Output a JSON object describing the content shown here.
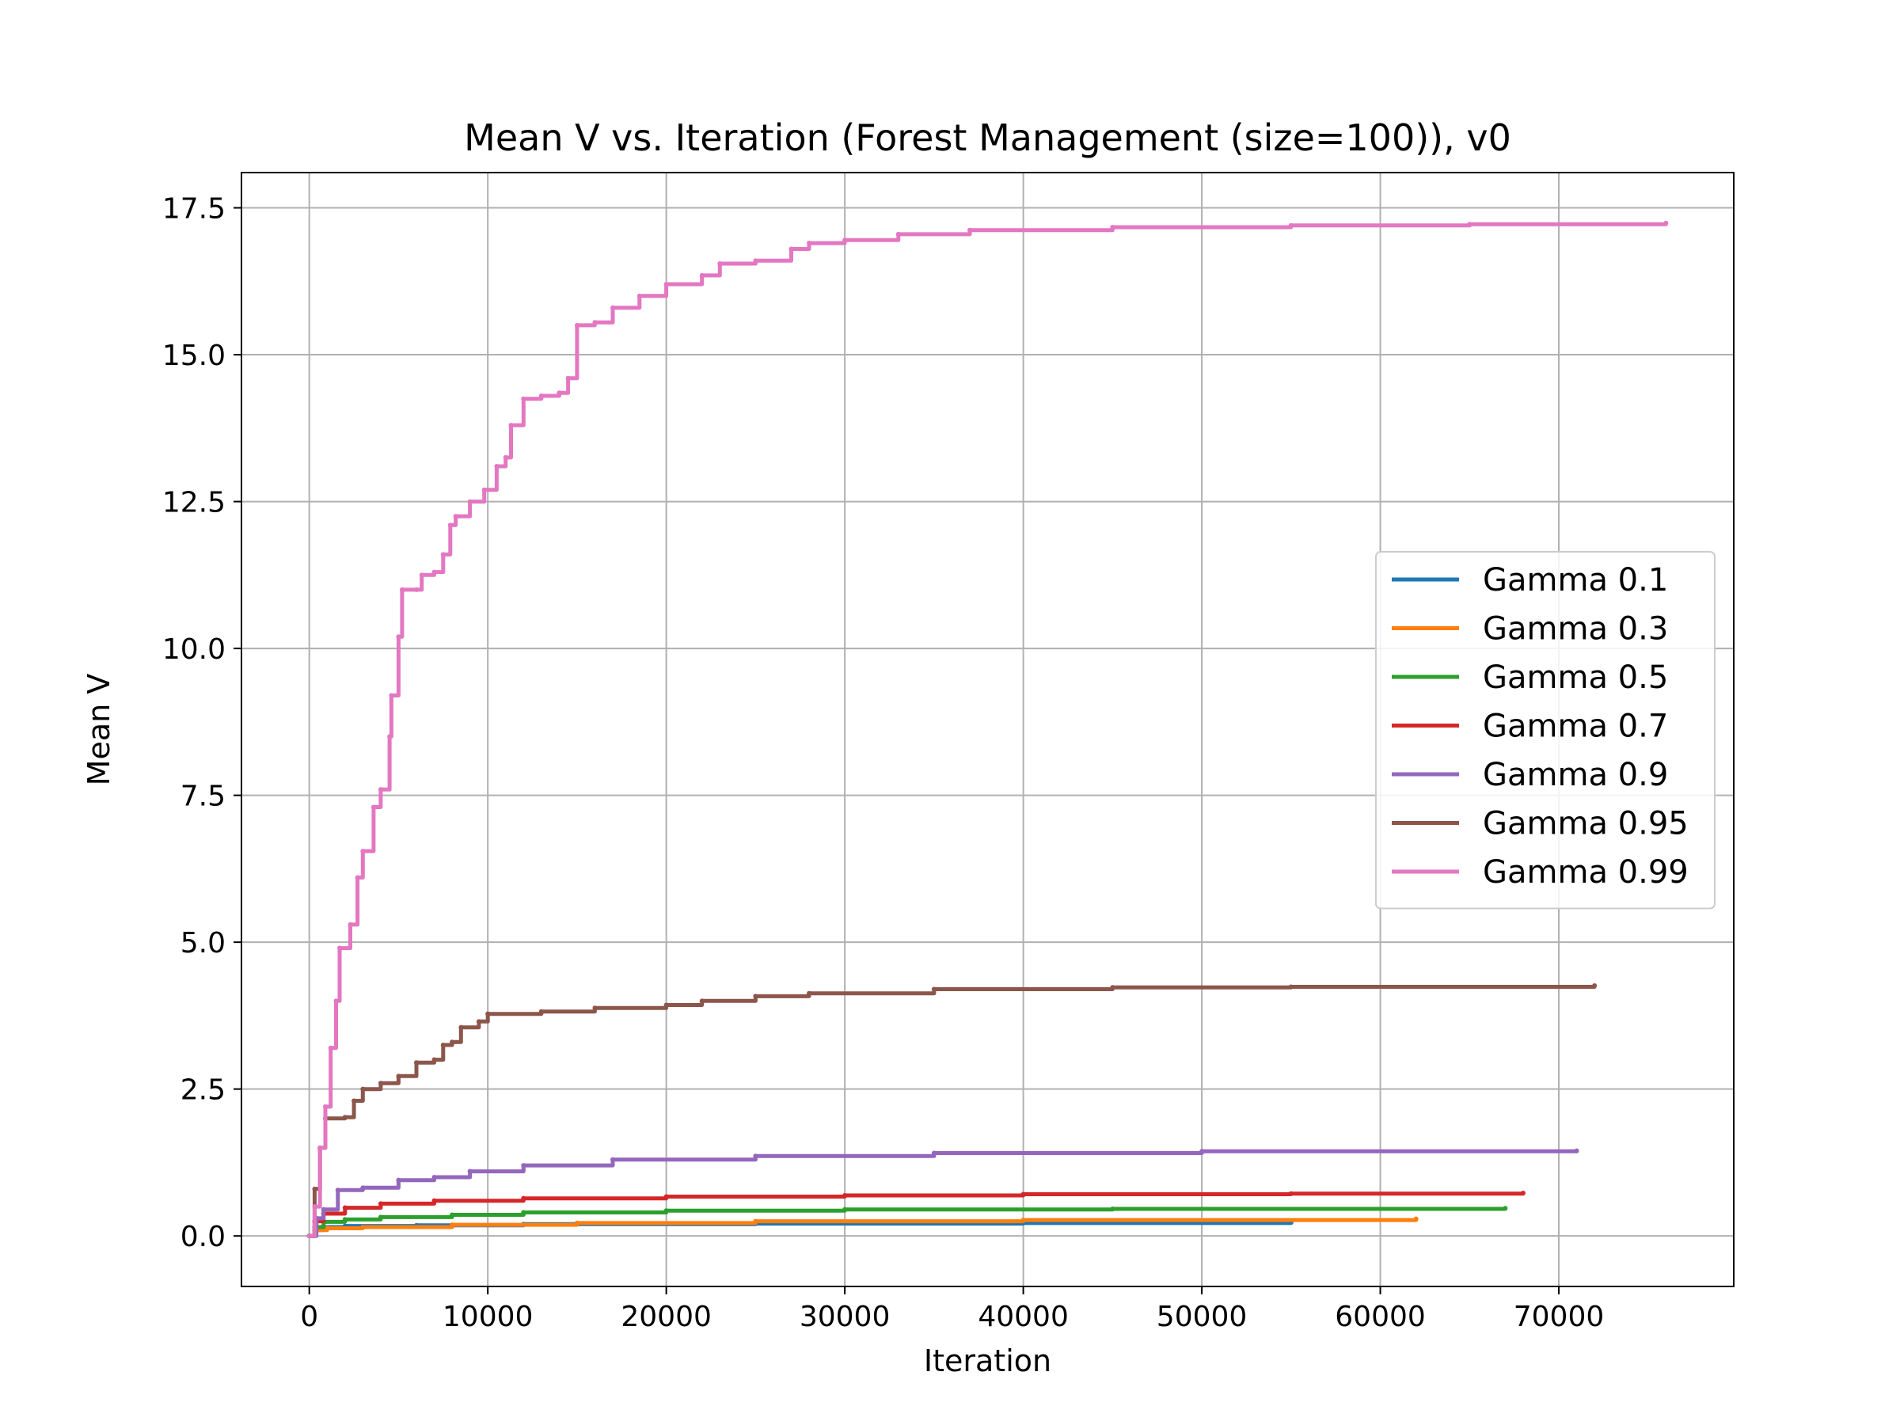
{
  "chart_data": {
    "type": "line",
    "title": "Mean V vs. Iteration (Forest Management (size=100)), v0",
    "xlabel": "Iteration",
    "ylabel": "Mean V",
    "xlim": [
      -3800,
      79800
    ],
    "ylim": [
      -0.86,
      18.1
    ],
    "x_ticks": [
      0,
      10000,
      20000,
      30000,
      40000,
      50000,
      60000,
      70000
    ],
    "y_ticks": [
      0.0,
      2.5,
      5.0,
      7.5,
      10.0,
      12.5,
      15.0,
      17.5
    ],
    "x_tick_labels": [
      "0",
      "10000",
      "20000",
      "30000",
      "40000",
      "50000",
      "60000",
      "70000"
    ],
    "y_tick_labels": [
      "0.0",
      "2.5",
      "5.0",
      "7.5",
      "10.0",
      "12.5",
      "15.0",
      "17.5"
    ],
    "grid": true,
    "legend_position": "center-right",
    "series": [
      {
        "name": "Gamma 0.1",
        "color": "#1f77b4",
        "points": [
          [
            0,
            0.0
          ],
          [
            300,
            0.1
          ],
          [
            800,
            0.15
          ],
          [
            2000,
            0.17
          ],
          [
            6000,
            0.18
          ],
          [
            12000,
            0.2
          ],
          [
            25000,
            0.21
          ],
          [
            40000,
            0.22
          ],
          [
            55000,
            0.23
          ]
        ]
      },
      {
        "name": "Gamma 0.3",
        "color": "#ff7f0e",
        "points": [
          [
            0,
            0.0
          ],
          [
            300,
            0.1
          ],
          [
            1000,
            0.13
          ],
          [
            3000,
            0.15
          ],
          [
            8000,
            0.19
          ],
          [
            15000,
            0.22
          ],
          [
            25000,
            0.25
          ],
          [
            40000,
            0.27
          ],
          [
            62000,
            0.29
          ]
        ]
      },
      {
        "name": "Gamma 0.5",
        "color": "#2ca02c",
        "points": [
          [
            0,
            0.0
          ],
          [
            300,
            0.15
          ],
          [
            800,
            0.24
          ],
          [
            2000,
            0.28
          ],
          [
            4000,
            0.32
          ],
          [
            8000,
            0.36
          ],
          [
            12000,
            0.4
          ],
          [
            20000,
            0.43
          ],
          [
            30000,
            0.45
          ],
          [
            45000,
            0.46
          ],
          [
            67000,
            0.47
          ]
        ]
      },
      {
        "name": "Gamma 0.7",
        "color": "#d62728",
        "points": [
          [
            0,
            0.0
          ],
          [
            300,
            0.25
          ],
          [
            800,
            0.38
          ],
          [
            2000,
            0.48
          ],
          [
            4000,
            0.55
          ],
          [
            7000,
            0.6
          ],
          [
            12000,
            0.64
          ],
          [
            20000,
            0.67
          ],
          [
            30000,
            0.69
          ],
          [
            40000,
            0.71
          ],
          [
            55000,
            0.72
          ],
          [
            68000,
            0.73
          ]
        ]
      },
      {
        "name": "Gamma 0.9",
        "color": "#9467bd",
        "points": [
          [
            0,
            0.0
          ],
          [
            400,
            0.3
          ],
          [
            800,
            0.45
          ],
          [
            1600,
            0.78
          ],
          [
            3000,
            0.82
          ],
          [
            5000,
            0.95
          ],
          [
            7000,
            1.0
          ],
          [
            9000,
            1.1
          ],
          [
            12000,
            1.2
          ],
          [
            17000,
            1.3
          ],
          [
            25000,
            1.36
          ],
          [
            35000,
            1.41
          ],
          [
            50000,
            1.44
          ],
          [
            71000,
            1.45
          ]
        ]
      },
      {
        "name": "Gamma 0.95",
        "color": "#8c564b",
        "points": [
          [
            0,
            0.0
          ],
          [
            300,
            0.8
          ],
          [
            600,
            1.5
          ],
          [
            900,
            2.0
          ],
          [
            2000,
            2.02
          ],
          [
            2500,
            2.3
          ],
          [
            3000,
            2.5
          ],
          [
            4000,
            2.6
          ],
          [
            5000,
            2.72
          ],
          [
            6000,
            2.95
          ],
          [
            7000,
            3.0
          ],
          [
            7500,
            3.25
          ],
          [
            8000,
            3.3
          ],
          [
            8500,
            3.55
          ],
          [
            9500,
            3.65
          ],
          [
            10000,
            3.78
          ],
          [
            13000,
            3.82
          ],
          [
            16000,
            3.88
          ],
          [
            20000,
            3.93
          ],
          [
            22000,
            4.0
          ],
          [
            25000,
            4.08
          ],
          [
            28000,
            4.13
          ],
          [
            35000,
            4.2
          ],
          [
            45000,
            4.23
          ],
          [
            55000,
            4.24
          ],
          [
            72000,
            4.26
          ]
        ]
      },
      {
        "name": "Gamma 0.99",
        "color": "#e377c2",
        "points": [
          [
            0,
            0.0
          ],
          [
            300,
            0.5
          ],
          [
            600,
            1.5
          ],
          [
            900,
            2.2
          ],
          [
            1200,
            3.2
          ],
          [
            1500,
            4.0
          ],
          [
            1700,
            4.9
          ],
          [
            2300,
            5.3
          ],
          [
            2700,
            6.1
          ],
          [
            3000,
            6.55
          ],
          [
            3600,
            7.3
          ],
          [
            4000,
            7.6
          ],
          [
            4500,
            8.5
          ],
          [
            4600,
            9.2
          ],
          [
            5000,
            10.2
          ],
          [
            5200,
            11.0
          ],
          [
            6000,
            11.0
          ],
          [
            6300,
            11.25
          ],
          [
            7000,
            11.3
          ],
          [
            7500,
            11.6
          ],
          [
            7900,
            12.1
          ],
          [
            8200,
            12.25
          ],
          [
            9000,
            12.5
          ],
          [
            9800,
            12.7
          ],
          [
            10500,
            13.1
          ],
          [
            11000,
            13.25
          ],
          [
            11300,
            13.8
          ],
          [
            12000,
            14.25
          ],
          [
            13000,
            14.3
          ],
          [
            14000,
            14.35
          ],
          [
            14500,
            14.6
          ],
          [
            15000,
            15.5
          ],
          [
            16000,
            15.55
          ],
          [
            17000,
            15.8
          ],
          [
            18500,
            16.0
          ],
          [
            20000,
            16.2
          ],
          [
            22000,
            16.35
          ],
          [
            23000,
            16.55
          ],
          [
            25000,
            16.6
          ],
          [
            27000,
            16.8
          ],
          [
            28000,
            16.9
          ],
          [
            30000,
            16.95
          ],
          [
            33000,
            17.05
          ],
          [
            37000,
            17.12
          ],
          [
            45000,
            17.17
          ],
          [
            55000,
            17.2
          ],
          [
            65000,
            17.22
          ],
          [
            76000,
            17.24
          ]
        ]
      }
    ]
  }
}
